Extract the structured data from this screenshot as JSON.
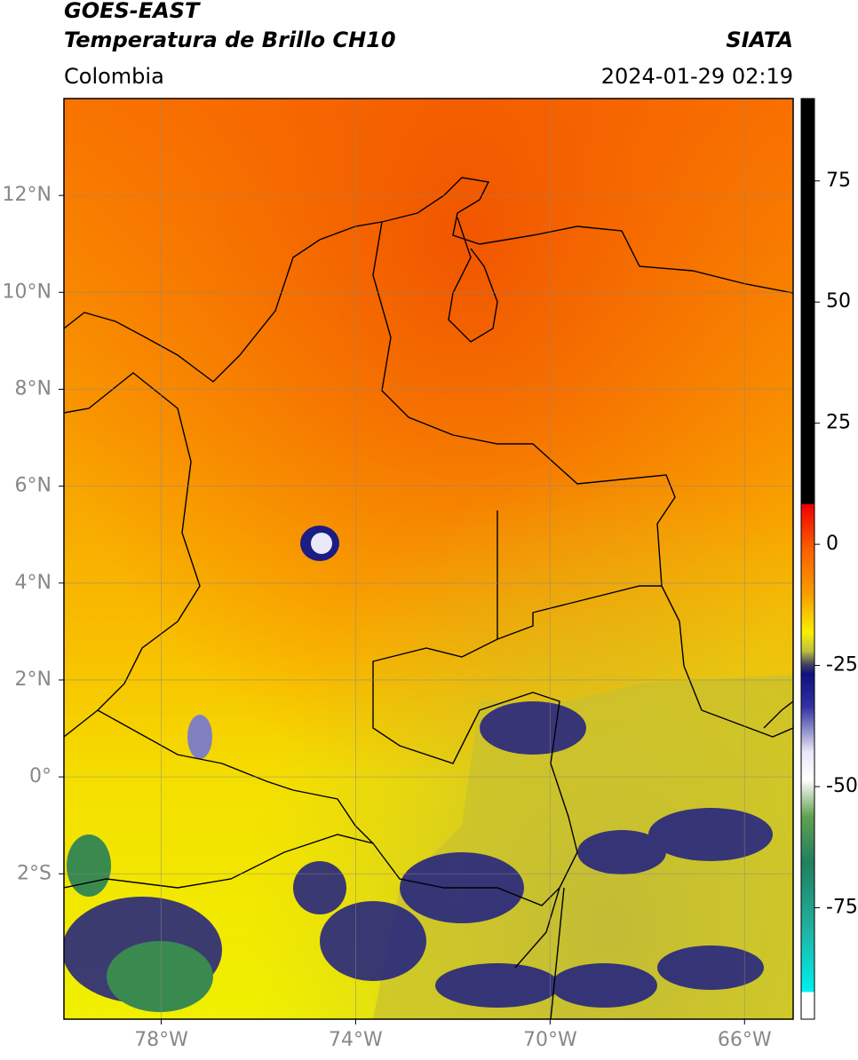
{
  "header": {
    "title": "GOES-EAST",
    "subtitle": "Temperatura de Brillo CH10",
    "source": "SIATA",
    "region": "Colombia",
    "datetime": "2024-01-29 02:19"
  },
  "map": {
    "xlim": [
      -80,
      -65
    ],
    "ylim": [
      -5,
      14
    ],
    "xticks": [
      {
        "value": -78,
        "label": "78°W"
      },
      {
        "value": -74,
        "label": "74°W"
      },
      {
        "value": -70,
        "label": "70°W"
      },
      {
        "value": -66,
        "label": "66°W"
      }
    ],
    "yticks": [
      {
        "value": 12,
        "label": "12°N"
      },
      {
        "value": 10,
        "label": "10°N"
      },
      {
        "value": 8,
        "label": "8°N"
      },
      {
        "value": 6,
        "label": "6°N"
      },
      {
        "value": 4,
        "label": "4°N"
      },
      {
        "value": 2,
        "label": "2°N"
      },
      {
        "value": 0,
        "label": "0°"
      },
      {
        "value": -2,
        "label": "2°S"
      }
    ],
    "grid": true
  },
  "colorbar": {
    "lim": [
      -98,
      92
    ],
    "ticks": [
      75,
      50,
      25,
      0,
      -25,
      -50,
      -75
    ]
  }
}
